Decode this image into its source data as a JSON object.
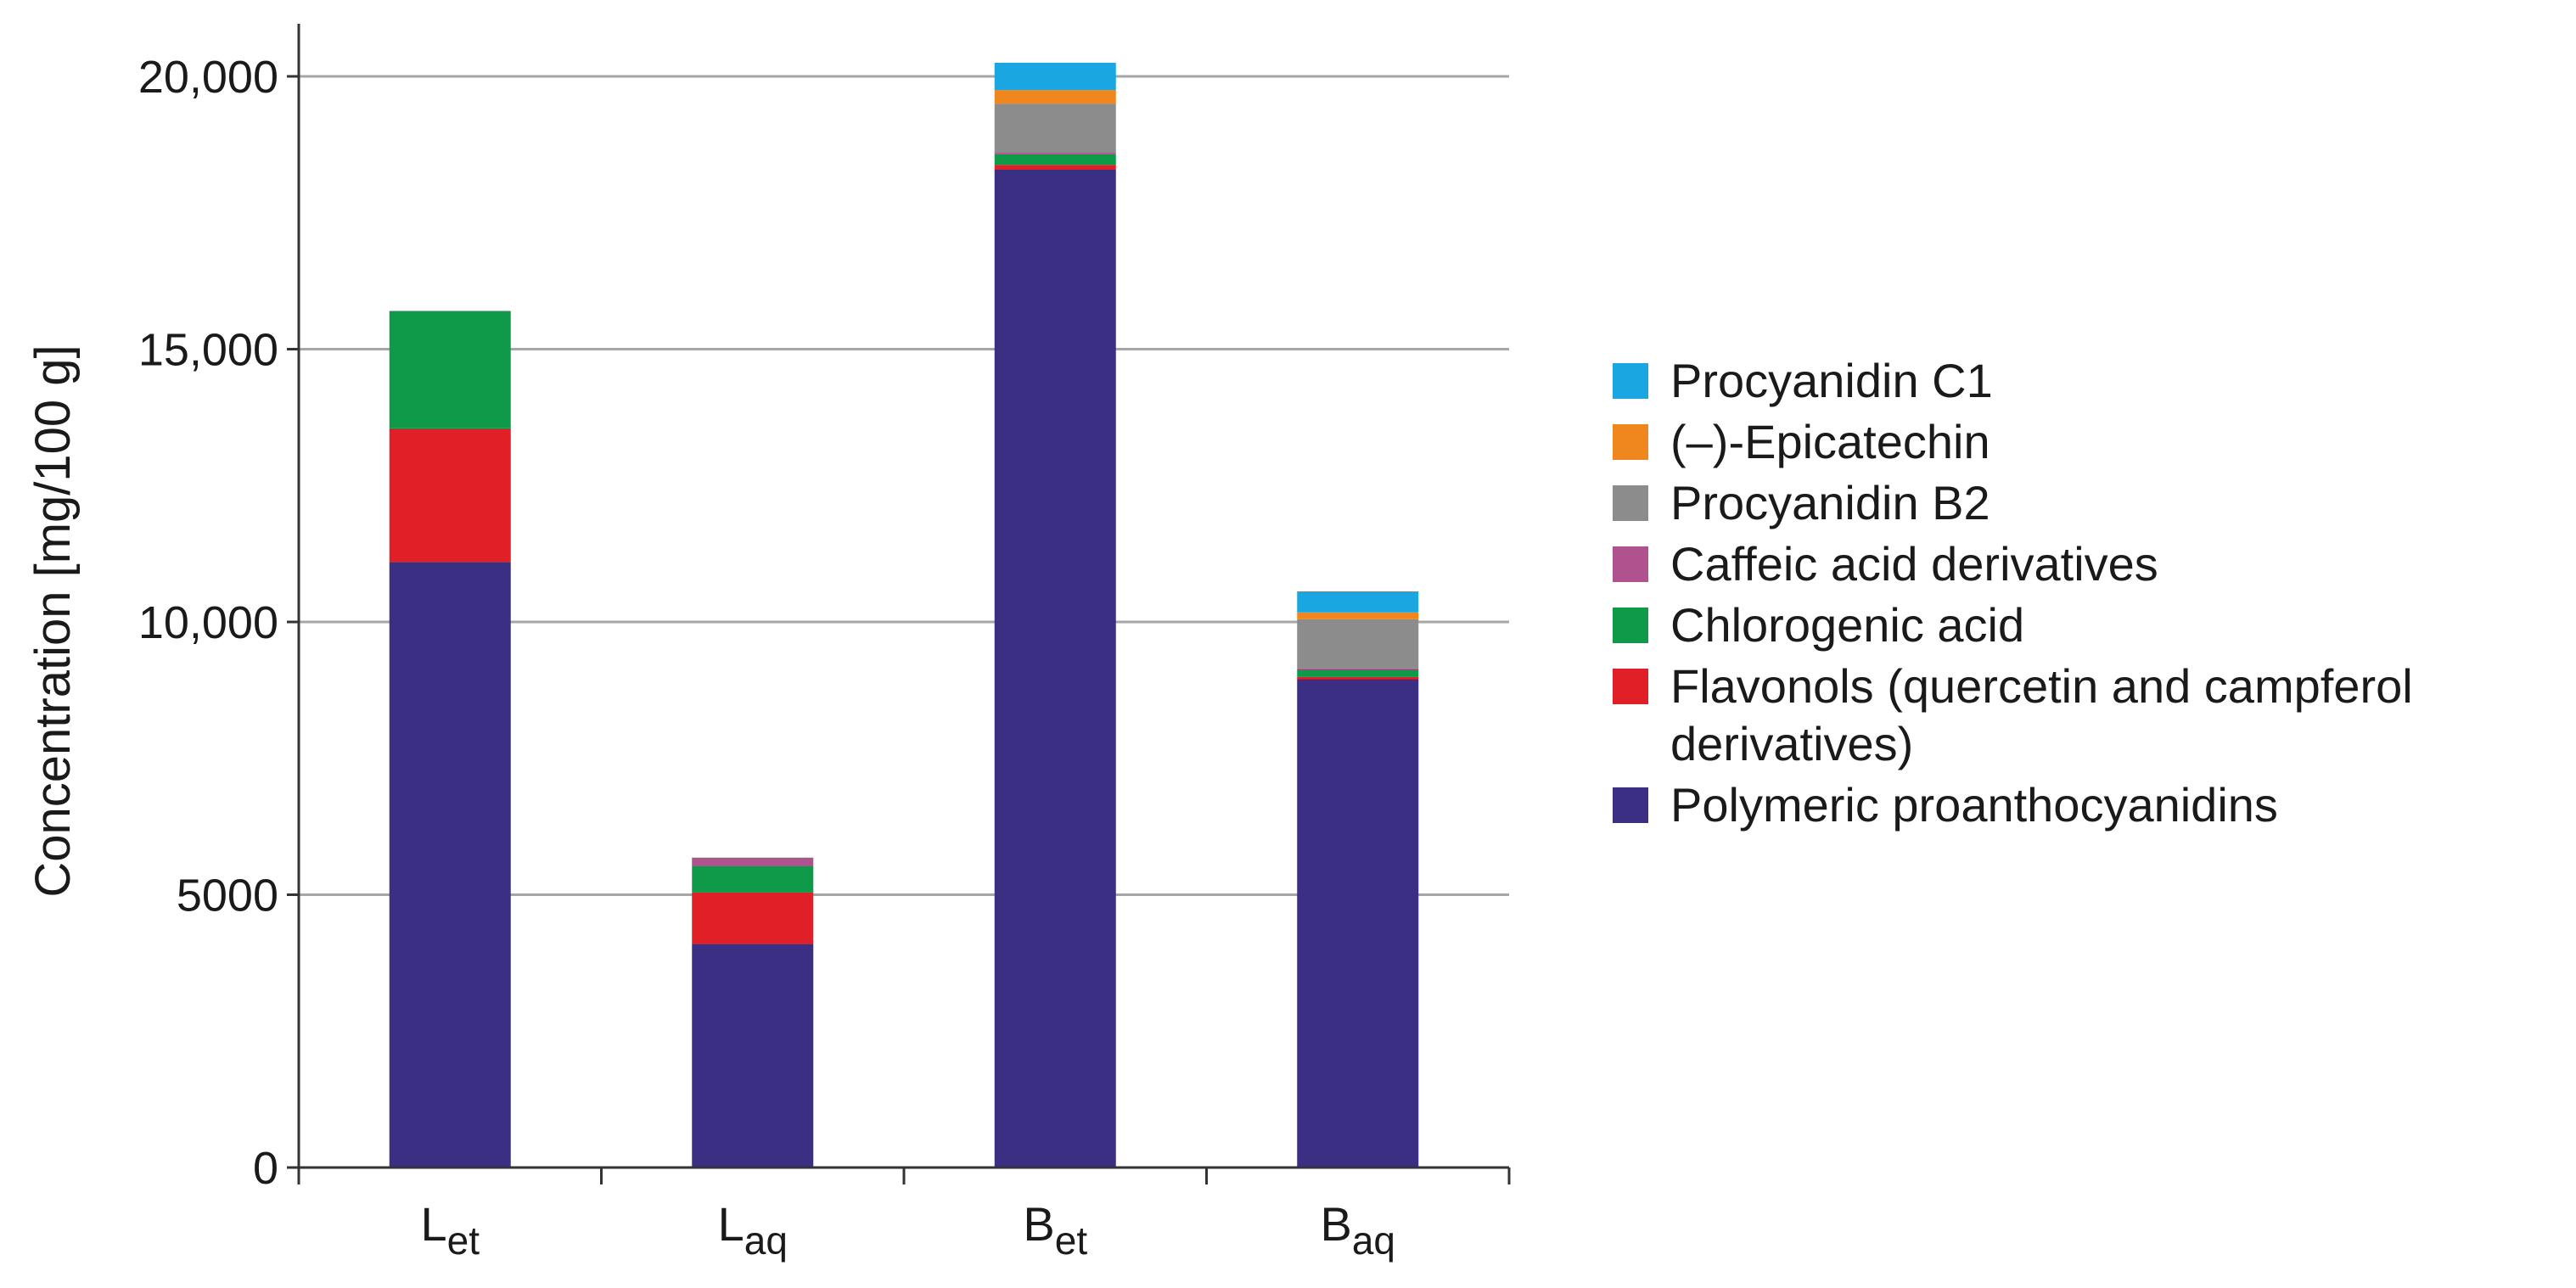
{
  "chart_data": {
    "type": "bar",
    "stacked": true,
    "title": "",
    "xlabel": "",
    "ylabel": "Concentration [mg/100 g]",
    "ylim": [
      0,
      20000
    ],
    "ytick_values": [
      0,
      5000,
      10000,
      15000,
      20000
    ],
    "ytick_labels": [
      "0",
      "5000",
      "10,000",
      "15,000",
      "20,000"
    ],
    "grid": true,
    "legend_position": "right",
    "categories": [
      {
        "main": "L",
        "sub": "et"
      },
      {
        "main": "L",
        "sub": "aq"
      },
      {
        "main": "B",
        "sub": "et"
      },
      {
        "main": "B",
        "sub": "aq"
      }
    ],
    "series": [
      {
        "name": "Polymeric proanthocyanidins",
        "color": "#3a2f82",
        "values": [
          11100,
          4100,
          18300,
          8950
        ]
      },
      {
        "name": "Flavonols (quercetin and campferol derivatives)",
        "color": "#e01f26",
        "values": [
          2450,
          950,
          80,
          50
        ]
      },
      {
        "name": "Chlorogenic acid",
        "color": "#0f9a4a",
        "values": [
          2150,
          480,
          200,
          130
        ]
      },
      {
        "name": "Caffeic acid derivatives",
        "color": "#b0528e",
        "values": [
          0,
          150,
          20,
          20
        ]
      },
      {
        "name": "Procyanidin B2",
        "color": "#8c8c8c",
        "values": [
          0,
          0,
          900,
          900
        ]
      },
      {
        "name": "(–)-Epicatechin",
        "color": "#f0861e",
        "values": [
          0,
          0,
          250,
          130
        ]
      },
      {
        "name": "Procyanidin C1",
        "color": "#1aa7e1",
        "values": [
          0,
          0,
          500,
          380
        ]
      }
    ],
    "legend": [
      {
        "series": "Procyanidin C1",
        "lines": [
          "Procyanidin C1"
        ],
        "color": "#1aa7e1"
      },
      {
        "series": "(–)-Epicatechin",
        "lines": [
          "(–)-Epicatechin"
        ],
        "color": "#f0861e"
      },
      {
        "series": "Procyanidin B2",
        "lines": [
          "Procyanidin B2"
        ],
        "color": "#8c8c8c"
      },
      {
        "series": "Caffeic acid derivatives",
        "lines": [
          "Caffeic acid derivatives"
        ],
        "color": "#b0528e"
      },
      {
        "series": "Chlorogenic acid",
        "lines": [
          "Chlorogenic acid"
        ],
        "color": "#0f9a4a"
      },
      {
        "series": "Flavonols (quercetin and campferol derivatives)",
        "lines": [
          "Flavonols (quercetin and campferol",
          "derivatives)"
        ],
        "color": "#e01f26"
      },
      {
        "series": "Polymeric proanthocyanidins",
        "lines": [
          "Polymeric proanthocyanidins"
        ],
        "color": "#3a2f82"
      }
    ]
  }
}
